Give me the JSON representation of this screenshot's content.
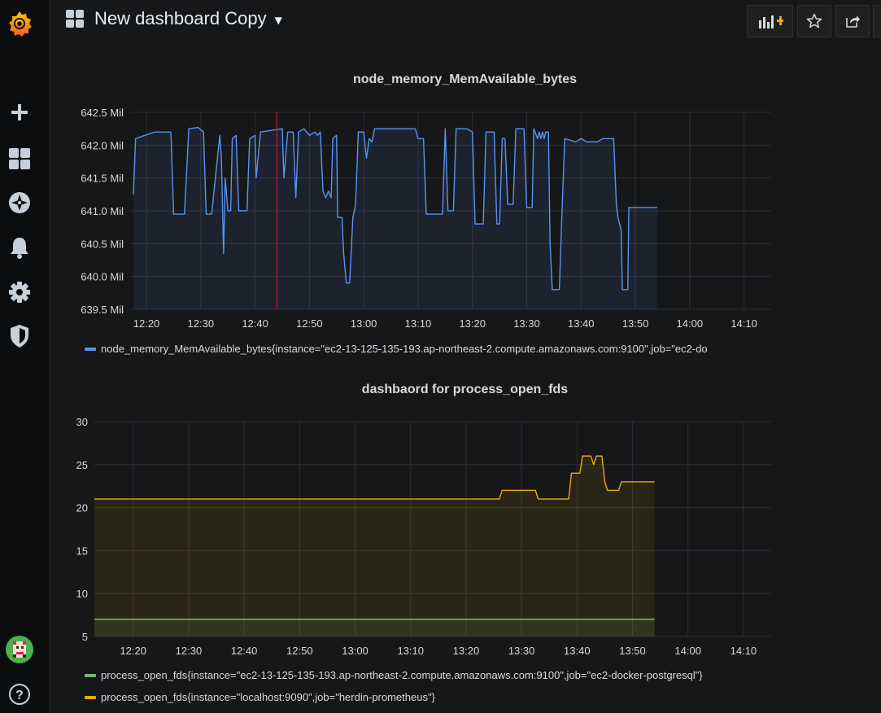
{
  "header": {
    "title": "New dashboard Copy"
  },
  "sidebar": {
    "items": [
      {
        "icon": "grafana-logo-icon"
      },
      {
        "icon": "plus-icon"
      },
      {
        "icon": "dashboards-icon"
      },
      {
        "icon": "explore-compass-icon"
      },
      {
        "icon": "alerting-bell-icon"
      },
      {
        "icon": "configuration-gear-icon"
      },
      {
        "icon": "server-admin-shield-icon"
      },
      {
        "icon": "user-avatar"
      },
      {
        "icon": "help-icon"
      }
    ]
  },
  "toolbar": {
    "buttons": [
      {
        "icon": "add-panel-icon"
      },
      {
        "icon": "star-icon"
      },
      {
        "icon": "share-icon"
      }
    ]
  },
  "colors": {
    "accent_orange": "#f29f19",
    "memory_series": "#5794f2",
    "postgres_series": "#73bf69",
    "prometheus_series": "#e5ac0e",
    "annotation": "#c4162a"
  },
  "panels": [
    {
      "title": "node_memory_MemAvailable_bytes",
      "legend": [
        {
          "label": "node_memory_MemAvailable_bytes{instance=\"ec2-13-125-135-193.ap-northeast-2.compute.amazonaws.com:9100\",job=\"ec2-do",
          "color": "#5794f2"
        }
      ]
    },
    {
      "title": "dashbaord for process_open_fds",
      "legend": [
        {
          "label": "process_open_fds{instance=\"ec2-13-125-135-193.ap-northeast-2.compute.amazonaws.com:9100\",job=\"ec2-docker-postgresql\"}",
          "color": "#73bf69"
        },
        {
          "label": "process_open_fds{instance=\"localhost:9090\",job=\"herdin-prometheus\"}",
          "color": "#e5ac0e"
        }
      ]
    }
  ],
  "chart_data": [
    {
      "type": "line",
      "title": "node_memory_MemAvailable_bytes",
      "x_ticks": [
        "12:20",
        "12:30",
        "12:40",
        "12:50",
        "13:00",
        "13:10",
        "13:20",
        "13:30",
        "13:40",
        "13:50",
        "14:00",
        "14:10"
      ],
      "y_ticks": [
        "639.5 Mil",
        "640.0 Mil",
        "640.5 Mil",
        "641.0 Mil",
        "641.5 Mil",
        "642.0 Mil",
        "642.5 Mil"
      ],
      "x_range_minutes": [
        737,
        855
      ],
      "ylim": [
        639.5,
        642.5
      ],
      "y_unit": "Mil",
      "grid": true,
      "annotation_x": "12:44",
      "series": [
        {
          "name": "node_memory_MemAvailable_bytes{instance=\"ec2-13-125-135-193.ap-northeast-2.compute.amazonaws.com:9100\",job=\"ec2-do",
          "color": "#5794f2",
          "fill": true,
          "points": [
            [
              737.6,
              641.25
            ],
            [
              738.0,
              642.1
            ],
            [
              741.5,
              642.2
            ],
            [
              744.2,
              642.2
            ],
            [
              744.5,
              642.2
            ],
            [
              745.0,
              640.95
            ],
            [
              747.0,
              640.95
            ],
            [
              747.8,
              642.25
            ],
            [
              749.5,
              642.27
            ],
            [
              750.5,
              642.2
            ],
            [
              751.0,
              640.95
            ],
            [
              752.0,
              640.95
            ],
            [
              753.5,
              642.15
            ],
            [
              753.8,
              641.8
            ],
            [
              754.2,
              640.35
            ],
            [
              754.5,
              641.5
            ],
            [
              755.0,
              641.0
            ],
            [
              755.5,
              641.0
            ],
            [
              755.8,
              642.1
            ],
            [
              756.5,
              642.15
            ],
            [
              757.0,
              641.0
            ],
            [
              758.5,
              641.0
            ],
            [
              759.0,
              642.1
            ],
            [
              760.0,
              642.15
            ],
            [
              760.2,
              641.5
            ],
            [
              761.0,
              642.2
            ],
            [
              765.0,
              642.25
            ],
            [
              765.3,
              641.5
            ],
            [
              766.0,
              642.2
            ],
            [
              767.0,
              642.2
            ],
            [
              767.5,
              641.2
            ],
            [
              768.0,
              642.2
            ],
            [
              769.0,
              642.25
            ],
            [
              770.0,
              642.15
            ],
            [
              771.0,
              642.2
            ],
            [
              771.5,
              642.15
            ],
            [
              772.0,
              642.2
            ],
            [
              772.5,
              641.3
            ],
            [
              773.0,
              641.2
            ],
            [
              773.5,
              641.3
            ],
            [
              774.0,
              641.2
            ],
            [
              774.3,
              642.1
            ],
            [
              775.0,
              642.15
            ],
            [
              775.2,
              640.9
            ],
            [
              776.0,
              640.9
            ],
            [
              776.3,
              640.35
            ],
            [
              776.8,
              639.9
            ],
            [
              777.4,
              639.9
            ],
            [
              778.0,
              640.9
            ],
            [
              778.5,
              641.1
            ],
            [
              779.0,
              642.2
            ],
            [
              780.0,
              642.2
            ],
            [
              780.5,
              641.8
            ],
            [
              781.0,
              642.1
            ],
            [
              781.5,
              642.05
            ],
            [
              782.0,
              642.25
            ],
            [
              788.5,
              642.25
            ],
            [
              789.5,
              642.25
            ],
            [
              790.0,
              642.1
            ],
            [
              791.0,
              642.1
            ],
            [
              791.5,
              640.95
            ],
            [
              794.5,
              640.95
            ],
            [
              795.0,
              642.25
            ],
            [
              795.5,
              641.0
            ],
            [
              796.5,
              641.0
            ],
            [
              797.0,
              642.25
            ],
            [
              799.0,
              642.25
            ],
            [
              800.0,
              642.2
            ],
            [
              800.5,
              640.8
            ],
            [
              802.0,
              640.8
            ],
            [
              802.5,
              642.2
            ],
            [
              804.0,
              642.2
            ],
            [
              804.5,
              640.8
            ],
            [
              805.0,
              640.8
            ],
            [
              805.5,
              642.1
            ],
            [
              806.0,
              642.1
            ],
            [
              806.5,
              641.1
            ],
            [
              807.5,
              641.1
            ],
            [
              808.0,
              642.25
            ],
            [
              809.5,
              642.25
            ],
            [
              810.0,
              641.05
            ],
            [
              811.0,
              641.05
            ],
            [
              811.3,
              642.25
            ],
            [
              812.0,
              642.1
            ],
            [
              812.3,
              642.2
            ],
            [
              812.6,
              642.1
            ],
            [
              812.9,
              642.2
            ],
            [
              813.2,
              642.1
            ],
            [
              813.5,
              642.2
            ],
            [
              814.0,
              642.2
            ],
            [
              814.3,
              640.5
            ],
            [
              814.7,
              639.8
            ],
            [
              816.0,
              639.8
            ],
            [
              816.5,
              641.0
            ],
            [
              817.0,
              642.1
            ],
            [
              819.0,
              642.05
            ],
            [
              820.0,
              642.1
            ],
            [
              821.0,
              642.05
            ],
            [
              823.0,
              642.05
            ],
            [
              824.0,
              642.1
            ],
            [
              826.0,
              642.1
            ],
            [
              826.5,
              641.1
            ],
            [
              826.8,
              640.9
            ],
            [
              827.4,
              640.7
            ],
            [
              827.6,
              639.8
            ],
            [
              828.6,
              639.8
            ],
            [
              828.8,
              641.05
            ],
            [
              834.0,
              641.05
            ]
          ]
        }
      ]
    },
    {
      "type": "line",
      "title": "dashbaord for process_open_fds",
      "x_ticks": [
        "12:20",
        "12:30",
        "12:40",
        "12:50",
        "13:00",
        "13:10",
        "13:20",
        "13:30",
        "13:40",
        "13:50",
        "14:00",
        "14:10"
      ],
      "y_ticks": [
        "5",
        "10",
        "15",
        "20",
        "25",
        "30"
      ],
      "x_range_minutes": [
        733,
        855
      ],
      "ylim": [
        5,
        30
      ],
      "grid": true,
      "series": [
        {
          "name": "process_open_fds{instance=\"ec2-13-125-135-193.ap-northeast-2.compute.amazonaws.com:9100\",job=\"ec2-docker-postgresql\"}",
          "color": "#73bf69",
          "fill": true,
          "points": [
            [
              733,
              7
            ],
            [
              834,
              7
            ]
          ]
        },
        {
          "name": "process_open_fds{instance=\"localhost:9090\",job=\"herdin-prometheus\"}",
          "color": "#e5ac0e",
          "fill": true,
          "points": [
            [
              733,
              21
            ],
            [
              806,
              21
            ],
            [
              806.5,
              22
            ],
            [
              812.5,
              22
            ],
            [
              813,
              21
            ],
            [
              818.5,
              21
            ],
            [
              819,
              24
            ],
            [
              820.5,
              24
            ],
            [
              821,
              26
            ],
            [
              822.5,
              26
            ],
            [
              823,
              25
            ],
            [
              823.5,
              26
            ],
            [
              824.5,
              26
            ],
            [
              825,
              23
            ],
            [
              825.5,
              22
            ],
            [
              827.5,
              22
            ],
            [
              828,
              23
            ],
            [
              834,
              23
            ]
          ]
        }
      ]
    }
  ]
}
